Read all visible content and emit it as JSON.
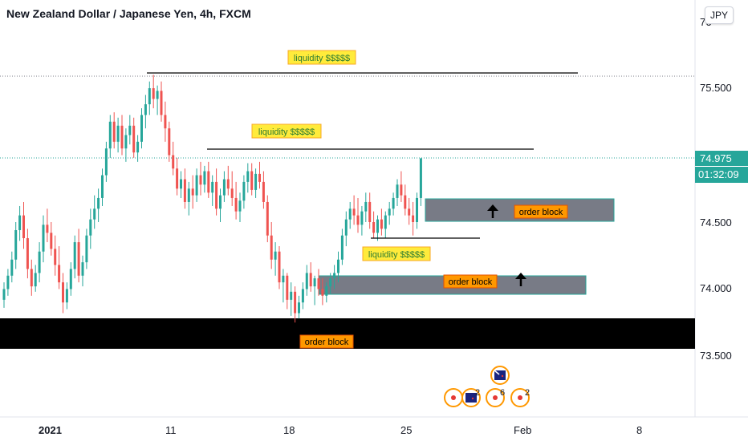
{
  "header": {
    "title": "New Zealand Dollar / Japanese Yen, 4h, FXCM",
    "currency_button": "JPY"
  },
  "price_axis": {
    "top_partial_label": "76",
    "ticks": [
      "75.500",
      "74.500",
      "74.000",
      "73.500"
    ],
    "current_price": "74.975",
    "countdown": "01:32:09"
  },
  "time_axis": {
    "ticks": [
      "2021",
      "11",
      "18",
      "25",
      "Feb",
      "8"
    ]
  },
  "annotations": {
    "liquidity_labels": [
      "liquidity $$$$$",
      "liquidity $$$$$",
      "liquidity $$$$$"
    ],
    "order_block_labels": [
      "order block",
      "order block",
      "order block"
    ]
  },
  "events": {
    "counts": [
      "2",
      "6",
      "2"
    ]
  },
  "colors": {
    "up": "#26a69a",
    "down": "#ef5350",
    "price_line": "#26a69a",
    "label_fill": "#ffeb3b",
    "label_text_liquidity": "#2e7d32",
    "order_label_fill": "#ff9800",
    "zone_fill": "#787b86",
    "black_zone": "#000000"
  },
  "chart_data": {
    "type": "candlestick",
    "symbol": "NZDJPY",
    "interval": "4h",
    "y_range": [
      73.3,
      76.2
    ],
    "candles": [
      [
        73.92,
        74.05,
        73.86,
        74.0
      ],
      [
        74.0,
        74.15,
        73.95,
        74.1
      ],
      [
        74.1,
        74.28,
        74.05,
        74.22
      ],
      [
        74.22,
        74.5,
        74.15,
        74.44
      ],
      [
        74.44,
        74.62,
        74.36,
        74.55
      ],
      [
        74.55,
        74.65,
        74.3,
        74.38
      ],
      [
        74.38,
        74.45,
        74.08,
        74.15
      ],
      [
        74.15,
        74.22,
        73.95,
        74.02
      ],
      [
        74.02,
        74.18,
        73.98,
        74.12
      ],
      [
        74.12,
        74.35,
        74.05,
        74.28
      ],
      [
        74.28,
        74.55,
        74.2,
        74.48
      ],
      [
        74.48,
        74.6,
        74.35,
        74.42
      ],
      [
        74.42,
        74.5,
        74.25,
        74.3
      ],
      [
        74.3,
        74.4,
        74.1,
        74.18
      ],
      [
        74.18,
        74.32,
        74.0,
        74.05
      ],
      [
        74.05,
        74.12,
        73.82,
        73.9
      ],
      [
        73.9,
        74.05,
        73.85,
        74.0
      ],
      [
        74.0,
        74.2,
        73.95,
        74.15
      ],
      [
        74.15,
        74.4,
        74.08,
        74.35
      ],
      [
        74.35,
        74.45,
        74.05,
        74.1
      ],
      [
        74.1,
        74.25,
        74.02,
        74.2
      ],
      [
        74.2,
        74.45,
        74.15,
        74.4
      ],
      [
        74.4,
        74.6,
        74.3,
        74.52
      ],
      [
        74.52,
        74.7,
        74.45,
        74.6
      ],
      [
        74.6,
        74.75,
        74.5,
        74.68
      ],
      [
        74.68,
        74.9,
        74.62,
        74.85
      ],
      [
        74.85,
        75.1,
        74.8,
        75.05
      ],
      [
        75.05,
        75.3,
        74.98,
        75.25
      ],
      [
        75.25,
        75.32,
        75.05,
        75.1
      ],
      [
        75.1,
        75.28,
        75.02,
        75.22
      ],
      [
        75.22,
        75.3,
        75.0,
        75.05
      ],
      [
        75.05,
        75.2,
        74.95,
        75.15
      ],
      [
        75.15,
        75.3,
        75.08,
        75.22
      ],
      [
        75.22,
        75.28,
        74.98,
        75.02
      ],
      [
        75.02,
        75.15,
        74.95,
        75.1
      ],
      [
        75.1,
        75.35,
        75.05,
        75.3
      ],
      [
        75.3,
        75.45,
        75.2,
        75.38
      ],
      [
        75.38,
        75.55,
        75.3,
        75.5
      ],
      [
        75.5,
        75.6,
        75.35,
        75.42
      ],
      [
        75.42,
        75.52,
        75.3,
        75.48
      ],
      [
        75.48,
        75.55,
        75.25,
        75.3
      ],
      [
        75.3,
        75.4,
        75.1,
        75.2
      ],
      [
        75.2,
        75.25,
        74.95,
        75.0
      ],
      [
        75.0,
        75.1,
        74.85,
        74.9
      ],
      [
        74.9,
        74.98,
        74.7,
        74.75
      ],
      [
        74.75,
        74.88,
        74.68,
        74.82
      ],
      [
        74.82,
        74.9,
        74.6,
        74.65
      ],
      [
        74.65,
        74.8,
        74.55,
        74.75
      ],
      [
        74.75,
        74.85,
        74.6,
        74.7
      ],
      [
        74.7,
        74.9,
        74.65,
        74.85
      ],
      [
        74.85,
        74.95,
        74.7,
        74.78
      ],
      [
        74.78,
        74.92,
        74.72,
        74.88
      ],
      [
        74.88,
        74.95,
        74.68,
        74.72
      ],
      [
        74.72,
        74.85,
        74.62,
        74.8
      ],
      [
        74.8,
        74.9,
        74.55,
        74.6
      ],
      [
        74.6,
        74.75,
        74.5,
        74.7
      ],
      [
        74.7,
        74.88,
        74.65,
        74.82
      ],
      [
        74.82,
        74.92,
        74.7,
        74.75
      ],
      [
        74.75,
        74.88,
        74.62,
        74.68
      ],
      [
        74.68,
        74.8,
        74.52,
        74.58
      ],
      [
        74.58,
        74.72,
        74.5,
        74.66
      ],
      [
        74.66,
        74.85,
        74.6,
        74.8
      ],
      [
        74.8,
        74.94,
        74.72,
        74.88
      ],
      [
        74.88,
        74.94,
        74.7,
        74.74
      ],
      [
        74.74,
        74.9,
        74.68,
        74.86
      ],
      [
        74.86,
        74.95,
        74.75,
        74.8
      ],
      [
        74.8,
        74.88,
        74.6,
        74.65
      ],
      [
        74.65,
        74.7,
        74.35,
        74.4
      ],
      [
        74.4,
        74.5,
        74.15,
        74.22
      ],
      [
        74.22,
        74.35,
        74.1,
        74.28
      ],
      [
        74.28,
        74.32,
        74.0,
        74.05
      ],
      [
        74.05,
        74.15,
        73.9,
        74.1
      ],
      [
        74.1,
        74.12,
        73.85,
        73.92
      ],
      [
        73.92,
        74.05,
        73.8,
        73.98
      ],
      [
        73.98,
        74.02,
        73.75,
        73.82
      ],
      [
        73.82,
        73.95,
        73.78,
        73.9
      ],
      [
        73.9,
        74.05,
        73.85,
        74.0
      ],
      [
        74.0,
        74.18,
        73.95,
        74.12
      ],
      [
        74.12,
        74.2,
        73.98,
        74.02
      ],
      [
        74.02,
        74.1,
        73.88,
        74.08
      ],
      [
        74.08,
        74.15,
        73.95,
        74.0
      ],
      [
        74.0,
        74.08,
        73.88,
        73.95
      ],
      [
        73.95,
        74.05,
        73.9,
        74.02
      ],
      [
        74.02,
        74.12,
        73.96,
        74.08
      ],
      [
        74.08,
        74.18,
        74.0,
        74.12
      ],
      [
        74.12,
        74.28,
        74.05,
        74.22
      ],
      [
        74.22,
        74.45,
        74.18,
        74.4
      ],
      [
        74.4,
        74.58,
        74.32,
        74.52
      ],
      [
        74.52,
        74.65,
        74.45,
        74.6
      ],
      [
        74.6,
        74.7,
        74.48,
        74.55
      ],
      [
        74.55,
        74.68,
        74.42,
        74.48
      ],
      [
        74.48,
        74.62,
        74.4,
        74.58
      ],
      [
        74.58,
        74.72,
        74.5,
        74.65
      ],
      [
        74.65,
        74.72,
        74.45,
        74.5
      ],
      [
        74.5,
        74.58,
        74.38,
        74.42
      ],
      [
        74.42,
        74.55,
        74.36,
        74.52
      ],
      [
        74.52,
        74.6,
        74.4,
        74.45
      ],
      [
        74.45,
        74.58,
        74.38,
        74.55
      ],
      [
        74.55,
        74.65,
        74.48,
        74.6
      ],
      [
        74.6,
        74.72,
        74.55,
        74.68
      ],
      [
        74.68,
        74.82,
        74.62,
        74.78
      ],
      [
        74.78,
        74.88,
        74.65,
        74.7
      ],
      [
        74.7,
        74.78,
        74.55,
        74.6
      ],
      [
        74.6,
        74.68,
        74.48,
        74.55
      ],
      [
        74.55,
        74.65,
        74.4,
        74.5
      ],
      [
        74.5,
        74.72,
        74.45,
        74.68
      ],
      [
        74.68,
        74.98,
        74.62,
        74.975
      ]
    ],
    "levels": [
      {
        "price": 75.58,
        "label": "liquidity $$$$$",
        "style": "solid"
      },
      {
        "price": 74.97,
        "label": "liquidity $$$$$",
        "style": "solid"
      },
      {
        "price": 74.37,
        "label": "liquidity $$$$$",
        "style": "solid"
      }
    ],
    "zones": [
      {
        "from": 74.5,
        "to": 74.67,
        "label": "order block",
        "color": "gray"
      },
      {
        "from": 73.96,
        "to": 74.1,
        "label": "order block",
        "color": "gray"
      },
      {
        "from": 73.55,
        "to": 73.78,
        "label": "order block",
        "color": "black"
      }
    ],
    "dotted_levels": [
      75.58,
      74.975
    ]
  }
}
